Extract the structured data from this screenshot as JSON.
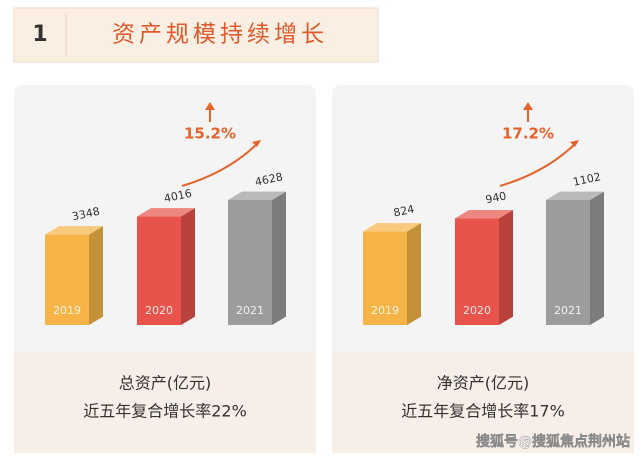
{
  "header": {
    "number": "1",
    "title": "资产规模持续增长"
  },
  "chart_data": [
    {
      "type": "bar",
      "categories": [
        "2019",
        "2020",
        "2021"
      ],
      "values": [
        3348,
        4016,
        4628
      ],
      "colors": [
        "#f6b447",
        "#e8534b",
        "#9c9c9c"
      ],
      "annotation": "15.2%",
      "caption": "总资产(亿元)",
      "note": "近五年复合增长率22%"
    },
    {
      "type": "bar",
      "categories": [
        "2019",
        "2020",
        "2021"
      ],
      "values": [
        824,
        940,
        1102
      ],
      "colors": [
        "#f6b447",
        "#e8534b",
        "#9c9c9c"
      ],
      "annotation": "17.2%",
      "caption": "净资产(亿元)",
      "note": "近五年复合增长率17%"
    }
  ],
  "watermark": "搜狐号@搜狐焦点荆州站"
}
